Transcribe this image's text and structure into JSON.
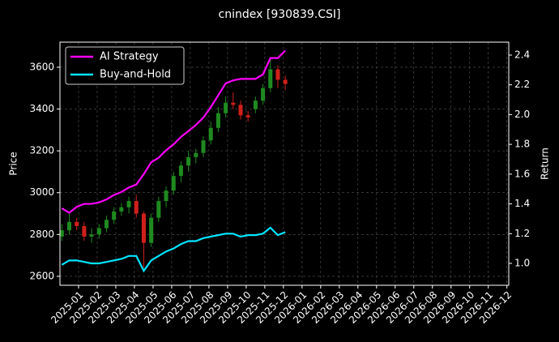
{
  "chart_data": {
    "type": "candlestick",
    "title": "cnindex [930839.CSI]",
    "ylabel": "Price",
    "y2label": "Return",
    "x": [
      0.1,
      0.5,
      0.9,
      1.3,
      1.7,
      2.1,
      2.5,
      2.9,
      3.3,
      3.7,
      4.1,
      4.5,
      4.9,
      5.3,
      5.7,
      6.1,
      6.5,
      6.9,
      7.3,
      7.7,
      8.1,
      8.5,
      8.9,
      9.3,
      9.7,
      10.1,
      10.5,
      10.9,
      11.3,
      11.7,
      12.1
    ],
    "open": [
      2790,
      2820,
      2860,
      2840,
      2790,
      2800,
      2830,
      2870,
      2910,
      2930,
      2960,
      2900,
      2760,
      2880,
      2960,
      3010,
      3080,
      3130,
      3170,
      3190,
      3250,
      3310,
      3380,
      3430,
      3420,
      3370,
      3400,
      3440,
      3500,
      3590,
      3540
    ],
    "high": [
      2850,
      2900,
      2880,
      2860,
      2830,
      2850,
      2890,
      2930,
      2950,
      2980,
      2990,
      2910,
      2900,
      2980,
      3030,
      3100,
      3150,
      3200,
      3210,
      3270,
      3340,
      3410,
      3460,
      3480,
      3440,
      3390,
      3460,
      3520,
      3640,
      3610,
      3560
    ],
    "low": [
      2770,
      2800,
      2820,
      2770,
      2760,
      2780,
      2810,
      2850,
      2890,
      2900,
      2880,
      2640,
      2740,
      2860,
      2930,
      2990,
      3050,
      3100,
      3140,
      3170,
      3230,
      3290,
      3360,
      3400,
      3350,
      3340,
      3380,
      3420,
      3480,
      3500,
      3490
    ],
    "close": [
      2820,
      2860,
      2840,
      2790,
      2800,
      2830,
      2870,
      2910,
      2930,
      2960,
      2900,
      2760,
      2880,
      2960,
      3010,
      3080,
      3130,
      3170,
      3190,
      3250,
      3310,
      3380,
      3430,
      3420,
      3370,
      3360,
      3440,
      3500,
      3590,
      3540,
      3520
    ],
    "up_color": "#1f8a1f",
    "down_color": "#d0201a",
    "series": [
      {
        "name": "AI Strategy",
        "color": "#ff00ff",
        "axis": "y2",
        "values": [
          1.37,
          1.34,
          1.38,
          1.4,
          1.4,
          1.41,
          1.43,
          1.46,
          1.48,
          1.51,
          1.53,
          1.6,
          1.68,
          1.71,
          1.76,
          1.8,
          1.85,
          1.89,
          1.93,
          1.98,
          2.05,
          2.13,
          2.21,
          2.23,
          2.24,
          2.24,
          2.24,
          2.27,
          2.38,
          2.38,
          2.43
        ]
      },
      {
        "name": "Buy-and-Hold",
        "color": "#00e5ff",
        "axis": "y2",
        "values": [
          0.99,
          1.02,
          1.02,
          1.01,
          1.0,
          1.0,
          1.01,
          1.02,
          1.03,
          1.05,
          1.05,
          0.95,
          1.02,
          1.05,
          1.08,
          1.1,
          1.13,
          1.15,
          1.15,
          1.17,
          1.18,
          1.19,
          1.2,
          1.2,
          1.18,
          1.19,
          1.19,
          1.2,
          1.24,
          1.19,
          1.21
        ]
      }
    ],
    "xlim": [
      0,
      24.1
    ],
    "xticks": [
      {
        "value": 1,
        "label": "2025-01"
      },
      {
        "value": 2,
        "label": "2025-02"
      },
      {
        "value": 3,
        "label": "2025-03"
      },
      {
        "value": 4,
        "label": "2025-04"
      },
      {
        "value": 5,
        "label": "2025-05"
      },
      {
        "value": 6,
        "label": "2025-06"
      },
      {
        "value": 7,
        "label": "2025-07"
      },
      {
        "value": 8,
        "label": "2025-08"
      },
      {
        "value": 9,
        "label": "2025-09"
      },
      {
        "value": 10,
        "label": "2025-10"
      },
      {
        "value": 11,
        "label": "2025-11"
      },
      {
        "value": 12,
        "label": "2025-12"
      },
      {
        "value": 13,
        "label": "2026-01"
      },
      {
        "value": 14,
        "label": "2026-02"
      },
      {
        "value": 15,
        "label": "2026-03"
      },
      {
        "value": 16,
        "label": "2026-04"
      },
      {
        "value": 17,
        "label": "2026-05"
      },
      {
        "value": 18,
        "label": "2026-06"
      },
      {
        "value": 19,
        "label": "2026-07"
      },
      {
        "value": 20,
        "label": "2026-08"
      },
      {
        "value": 21,
        "label": "2026-09"
      },
      {
        "value": 22,
        "label": "2026-10"
      },
      {
        "value": 23,
        "label": "2026-11"
      },
      {
        "value": 24,
        "label": "2026-12"
      }
    ],
    "ylim": [
      2557,
      3720
    ],
    "yticks": [
      2600,
      2800,
      3000,
      3200,
      3400,
      3600
    ],
    "y2lim": [
      0.853,
      2.487
    ],
    "y2ticks": [
      {
        "value": 1,
        "label": "1.0"
      },
      1.2,
      1.4,
      1.6,
      1.8,
      {
        "value": 2,
        "label": "2.0"
      },
      2.2,
      2.4
    ],
    "grid": true,
    "legend": "upper left"
  }
}
